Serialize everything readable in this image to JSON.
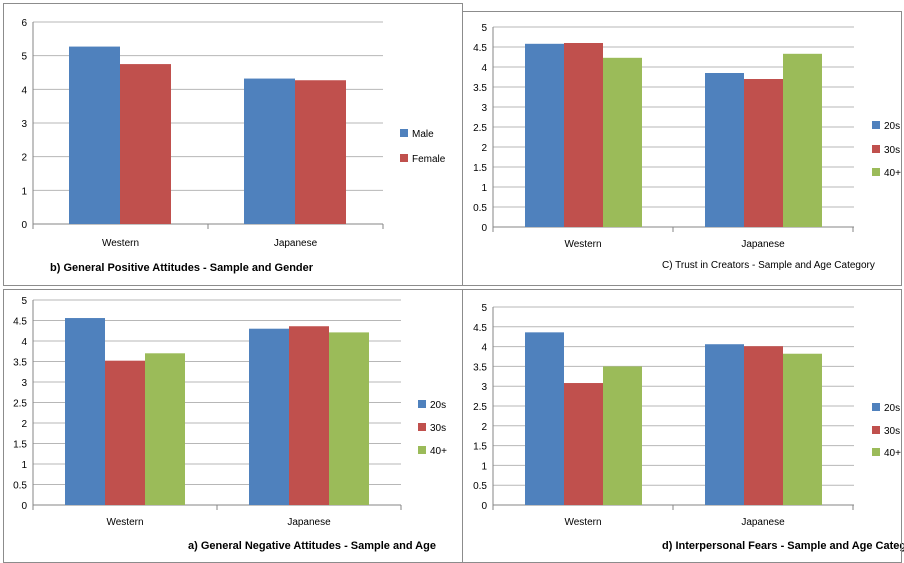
{
  "colors": {
    "blue": "#4f81bd",
    "red": "#c0504d",
    "green": "#9bbb59",
    "grid": "#b7b7b7",
    "axis": "#868686"
  },
  "chart_data": [
    {
      "type": "bar",
      "title": "b) General Positive Attitudes - Sample and Gender",
      "categories": [
        "Western",
        "Japanese"
      ],
      "series": [
        {
          "name": "Male",
          "values": [
            5.27,
            4.32
          ],
          "color": "#4f81bd"
        },
        {
          "name": "Female",
          "values": [
            4.75,
            4.27
          ],
          "color": "#c0504d"
        }
      ],
      "yticks": [
        "0",
        "1",
        "2",
        "3",
        "4",
        "5",
        "6"
      ],
      "ylim": [
        0,
        6
      ],
      "grid": true,
      "legend": "right"
    },
    {
      "type": "bar",
      "title": "C) Trust in Creators - Sample and Age Category",
      "categories": [
        "Western",
        "Japanese"
      ],
      "series": [
        {
          "name": "20s",
          "values": [
            4.58,
            3.85
          ],
          "color": "#4f81bd"
        },
        {
          "name": "30s",
          "values": [
            4.6,
            3.7
          ],
          "color": "#c0504d"
        },
        {
          "name": "40+",
          "values": [
            4.23,
            4.33
          ],
          "color": "#9bbb59"
        }
      ],
      "yticks": [
        "0",
        "0.5",
        "1",
        "1.5",
        "2",
        "2.5",
        "3",
        "3.5",
        "4",
        "4.5",
        "5"
      ],
      "ylim": [
        0,
        5
      ],
      "grid": true,
      "legend": "right"
    },
    {
      "type": "bar",
      "title": "a) General Negative Attitudes - Sample and Age",
      "categories": [
        "Western",
        "Japanese"
      ],
      "series": [
        {
          "name": "20s",
          "values": [
            4.56,
            4.3
          ],
          "color": "#4f81bd"
        },
        {
          "name": "30s",
          "values": [
            3.52,
            4.36
          ],
          "color": "#c0504d"
        },
        {
          "name": "40+",
          "values": [
            3.7,
            4.21
          ],
          "color": "#9bbb59"
        }
      ],
      "yticks": [
        "0",
        "0.5",
        "1",
        "1.5",
        "2",
        "2.5",
        "3",
        "3.5",
        "4",
        "4.5",
        "5"
      ],
      "ylim": [
        0,
        5
      ],
      "grid": true,
      "legend": "right"
    },
    {
      "type": "bar",
      "title": "d) Interpersonal Fears - Sample and Age Category",
      "categories": [
        "Western",
        "Japanese"
      ],
      "series": [
        {
          "name": "20s",
          "values": [
            4.36,
            4.06
          ],
          "color": "#4f81bd"
        },
        {
          "name": "30s",
          "values": [
            3.08,
            4.01
          ],
          "color": "#c0504d"
        },
        {
          "name": "40+",
          "values": [
            3.5,
            3.82
          ],
          "color": "#9bbb59"
        }
      ],
      "yticks": [
        "0",
        "0.5",
        "1",
        "1.5",
        "2",
        "2.5",
        "3",
        "3.5",
        "4",
        "4.5",
        "5"
      ],
      "ylim": [
        0,
        5
      ],
      "grid": true,
      "legend": "right"
    }
  ]
}
